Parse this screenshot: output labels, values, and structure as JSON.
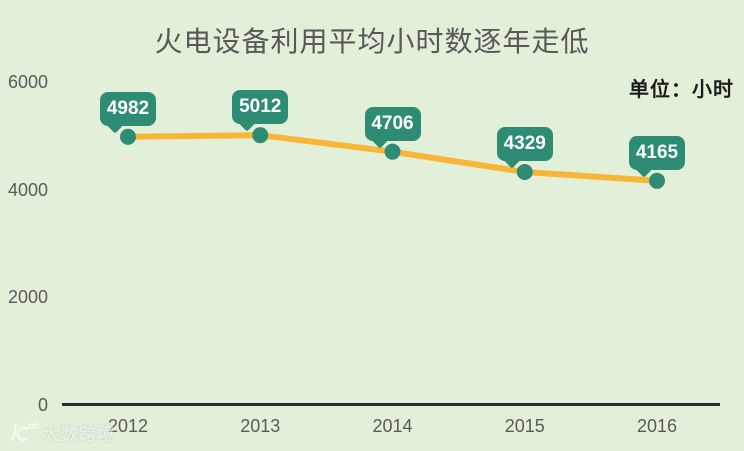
{
  "page": {
    "background": "#e2efd9"
  },
  "chart_data": {
    "type": "line",
    "title": "火电设备利用平均小时数逐年走低",
    "unit_label": "单位：小时",
    "categories": [
      "2012",
      "2013",
      "2014",
      "2015",
      "2016"
    ],
    "values": [
      4982,
      5012,
      4706,
      4329,
      4165
    ],
    "series": [
      {
        "name": "火电设备利用平均小时数",
        "values": [
          4982,
          5012,
          4706,
          4329,
          4165
        ]
      }
    ],
    "y_ticks": [
      0,
      2000,
      4000,
      6000
    ],
    "ylim": [
      0,
      6000
    ],
    "xlabel": "",
    "ylabel": "",
    "grid": false,
    "legend_position": "none",
    "line_color": "#f7b637",
    "marker_color": "#2e8b74",
    "label_bubble_color": "#2e8b74",
    "label_text_color": "#ffffff",
    "axis_color": "#2d2d2d"
  },
  "watermark": {
    "text": "大数跨境"
  }
}
